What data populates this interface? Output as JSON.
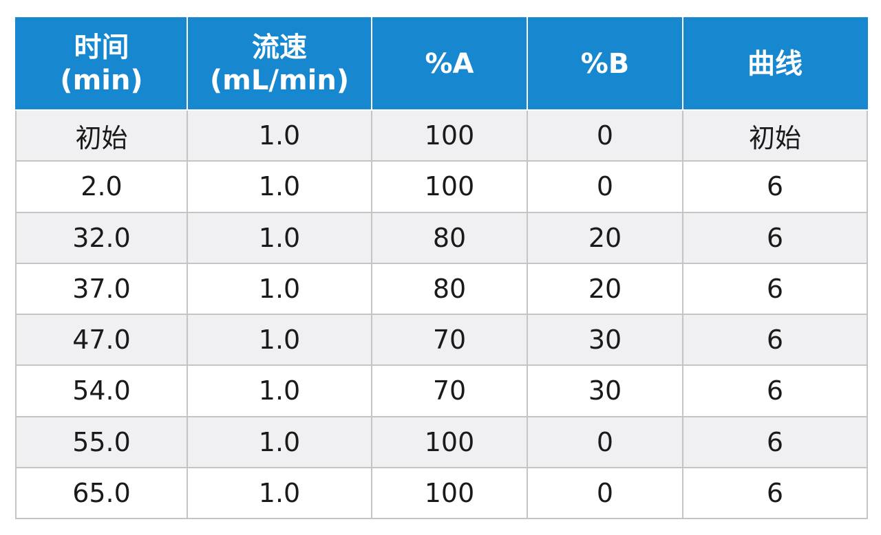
{
  "table": {
    "headers": [
      {
        "line1": "时间",
        "line2": "(min)"
      },
      {
        "line1": "流速",
        "line2": "(mL/min)"
      },
      {
        "line1": "%A",
        "line2": ""
      },
      {
        "line1": "%B",
        "line2": ""
      },
      {
        "line1": "曲线",
        "line2": ""
      }
    ],
    "rows": [
      [
        "初始",
        "1.0",
        "100",
        "0",
        "初始"
      ],
      [
        "2.0",
        "1.0",
        "100",
        "0",
        "6"
      ],
      [
        "32.0",
        "1.0",
        "80",
        "20",
        "6"
      ],
      [
        "37.0",
        "1.0",
        "80",
        "20",
        "6"
      ],
      [
        "47.0",
        "1.0",
        "70",
        "30",
        "6"
      ],
      [
        "54.0",
        "1.0",
        "70",
        "30",
        "6"
      ],
      [
        "55.0",
        "1.0",
        "100",
        "0",
        "6"
      ],
      [
        "65.0",
        "1.0",
        "100",
        "0",
        "6"
      ]
    ]
  },
  "colors": {
    "header_bg": "#1787d0",
    "header_text": "#ffffff",
    "row_odd_bg": "#f0f0f2",
    "row_even_bg": "#ffffff",
    "grid": "#c4c4c4"
  }
}
